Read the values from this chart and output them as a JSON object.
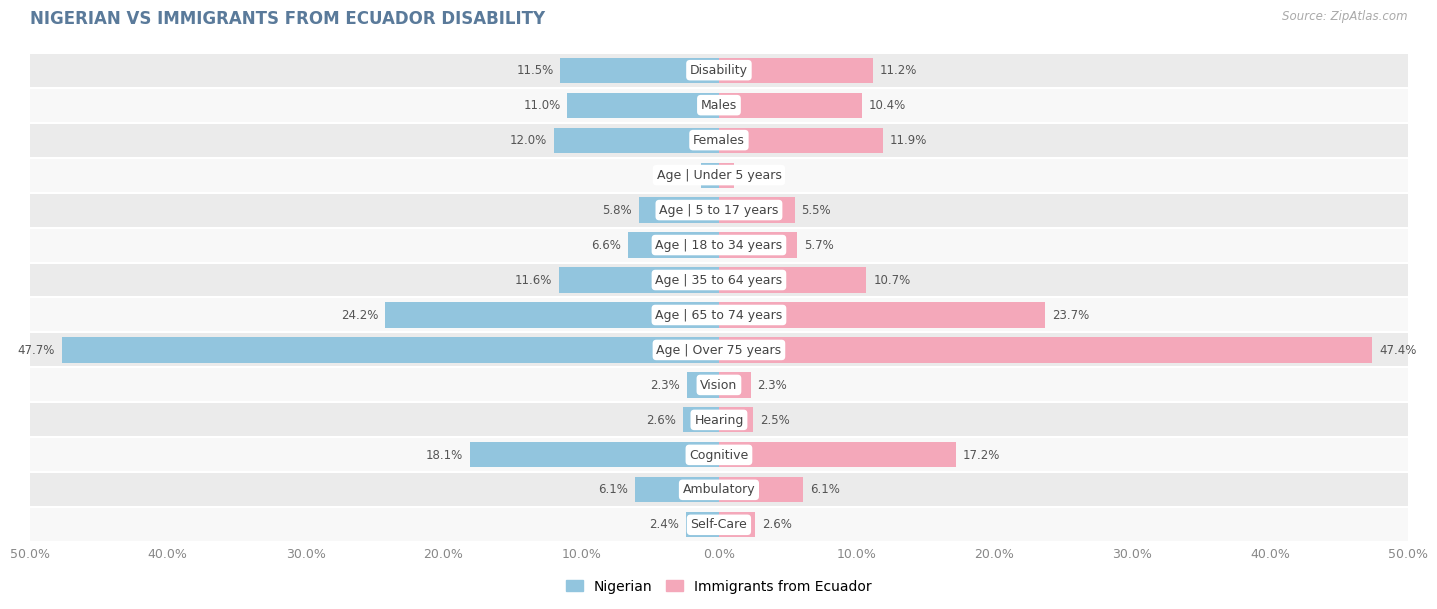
{
  "title": "NIGERIAN VS IMMIGRANTS FROM ECUADOR DISABILITY",
  "source": "Source: ZipAtlas.com",
  "categories": [
    "Disability",
    "Males",
    "Females",
    "Age | Under 5 years",
    "Age | 5 to 17 years",
    "Age | 18 to 34 years",
    "Age | 35 to 64 years",
    "Age | 65 to 74 years",
    "Age | Over 75 years",
    "Vision",
    "Hearing",
    "Cognitive",
    "Ambulatory",
    "Self-Care"
  ],
  "nigerian": [
    11.5,
    11.0,
    12.0,
    1.3,
    5.8,
    6.6,
    11.6,
    24.2,
    47.7,
    2.3,
    2.6,
    18.1,
    6.1,
    2.4
  ],
  "ecuador": [
    11.2,
    10.4,
    11.9,
    1.1,
    5.5,
    5.7,
    10.7,
    23.7,
    47.4,
    2.3,
    2.5,
    17.2,
    6.1,
    2.6
  ],
  "nigerian_color": "#92c5de",
  "ecuador_color": "#f4a8ba",
  "background_row_odd": "#ebebeb",
  "background_row_even": "#f8f8f8",
  "bar_height": 0.72,
  "axis_limit": 50.0,
  "x_ticks": [
    -50,
    -40,
    -30,
    -20,
    -10,
    0,
    10,
    20,
    30,
    40,
    50
  ],
  "legend_nigerian": "Nigerian",
  "legend_ecuador": "Immigrants from Ecuador",
  "title_color": "#5a7a9a",
  "label_fontsize": 9.0,
  "value_fontsize": 8.5
}
